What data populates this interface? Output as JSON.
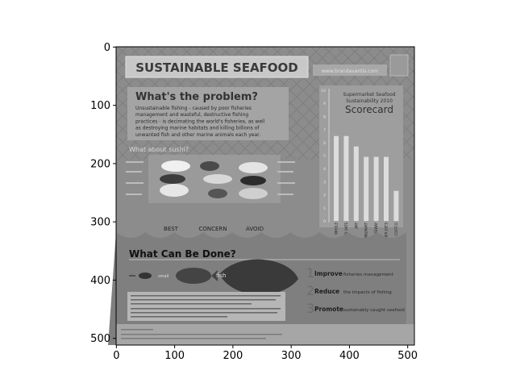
{
  "chart_data": {
    "type": "image",
    "x_ticks": [
      "0",
      "100",
      "200",
      "300",
      "400",
      "500"
    ],
    "y_ticks": [
      "0",
      "100",
      "200",
      "300",
      "400",
      "500"
    ],
    "xlim": [
      -0.5,
      511.5
    ],
    "ylim": [
      511.5,
      -0.5
    ],
    "colormap": "gray",
    "grid": false
  },
  "poster": {
    "title": "SUSTAINABLE SEAFOOD",
    "site": "www.brandavantis.com",
    "problem_heading": "What's the problem?",
    "problem_text": [
      "Unsustainable fishing - caused by poor fisheries",
      "management and wasteful, destructive fishing",
      "practices - is decimating the world's fisheries, as well",
      "as destroying marine habitats and killing billions of",
      "unwanted fish and other marine animals each year."
    ],
    "sushi_heading": "What about sushi?",
    "sushi_labels": [
      "BEST",
      "CONCERN",
      "AVOID"
    ],
    "scorecard_sub1": "Supermarket Seafood",
    "scorecard_sub2": "Sustainability 2010",
    "scorecard_title": "Scorecard",
    "scorecard_axis": [
      "10",
      "9",
      "8",
      "7",
      "6",
      "5",
      "4",
      "3",
      "2",
      "1",
      "0"
    ],
    "scorecard_values": [
      6.5,
      6.5,
      5.7,
      4.9,
      4.9,
      4.9,
      2.3
    ],
    "scorecard_labels": [
      "WHOLE",
      "WILD OATS",
      "ART",
      "WALMART",
      "SAFEWAY",
      "TRADER JOE'S",
      "COSTCO"
    ],
    "done_heading": "What Can Be Done?",
    "fish_labels": [
      "small",
      "fish"
    ],
    "actions": [
      {
        "num": "1",
        "bold": "Improve",
        "text": "fisheries management"
      },
      {
        "num": "2",
        "bold": "Reduce",
        "text": "the impacts of fishing"
      },
      {
        "num": "3",
        "bold": "Promote",
        "text": "sustainably caught seafood"
      }
    ]
  }
}
